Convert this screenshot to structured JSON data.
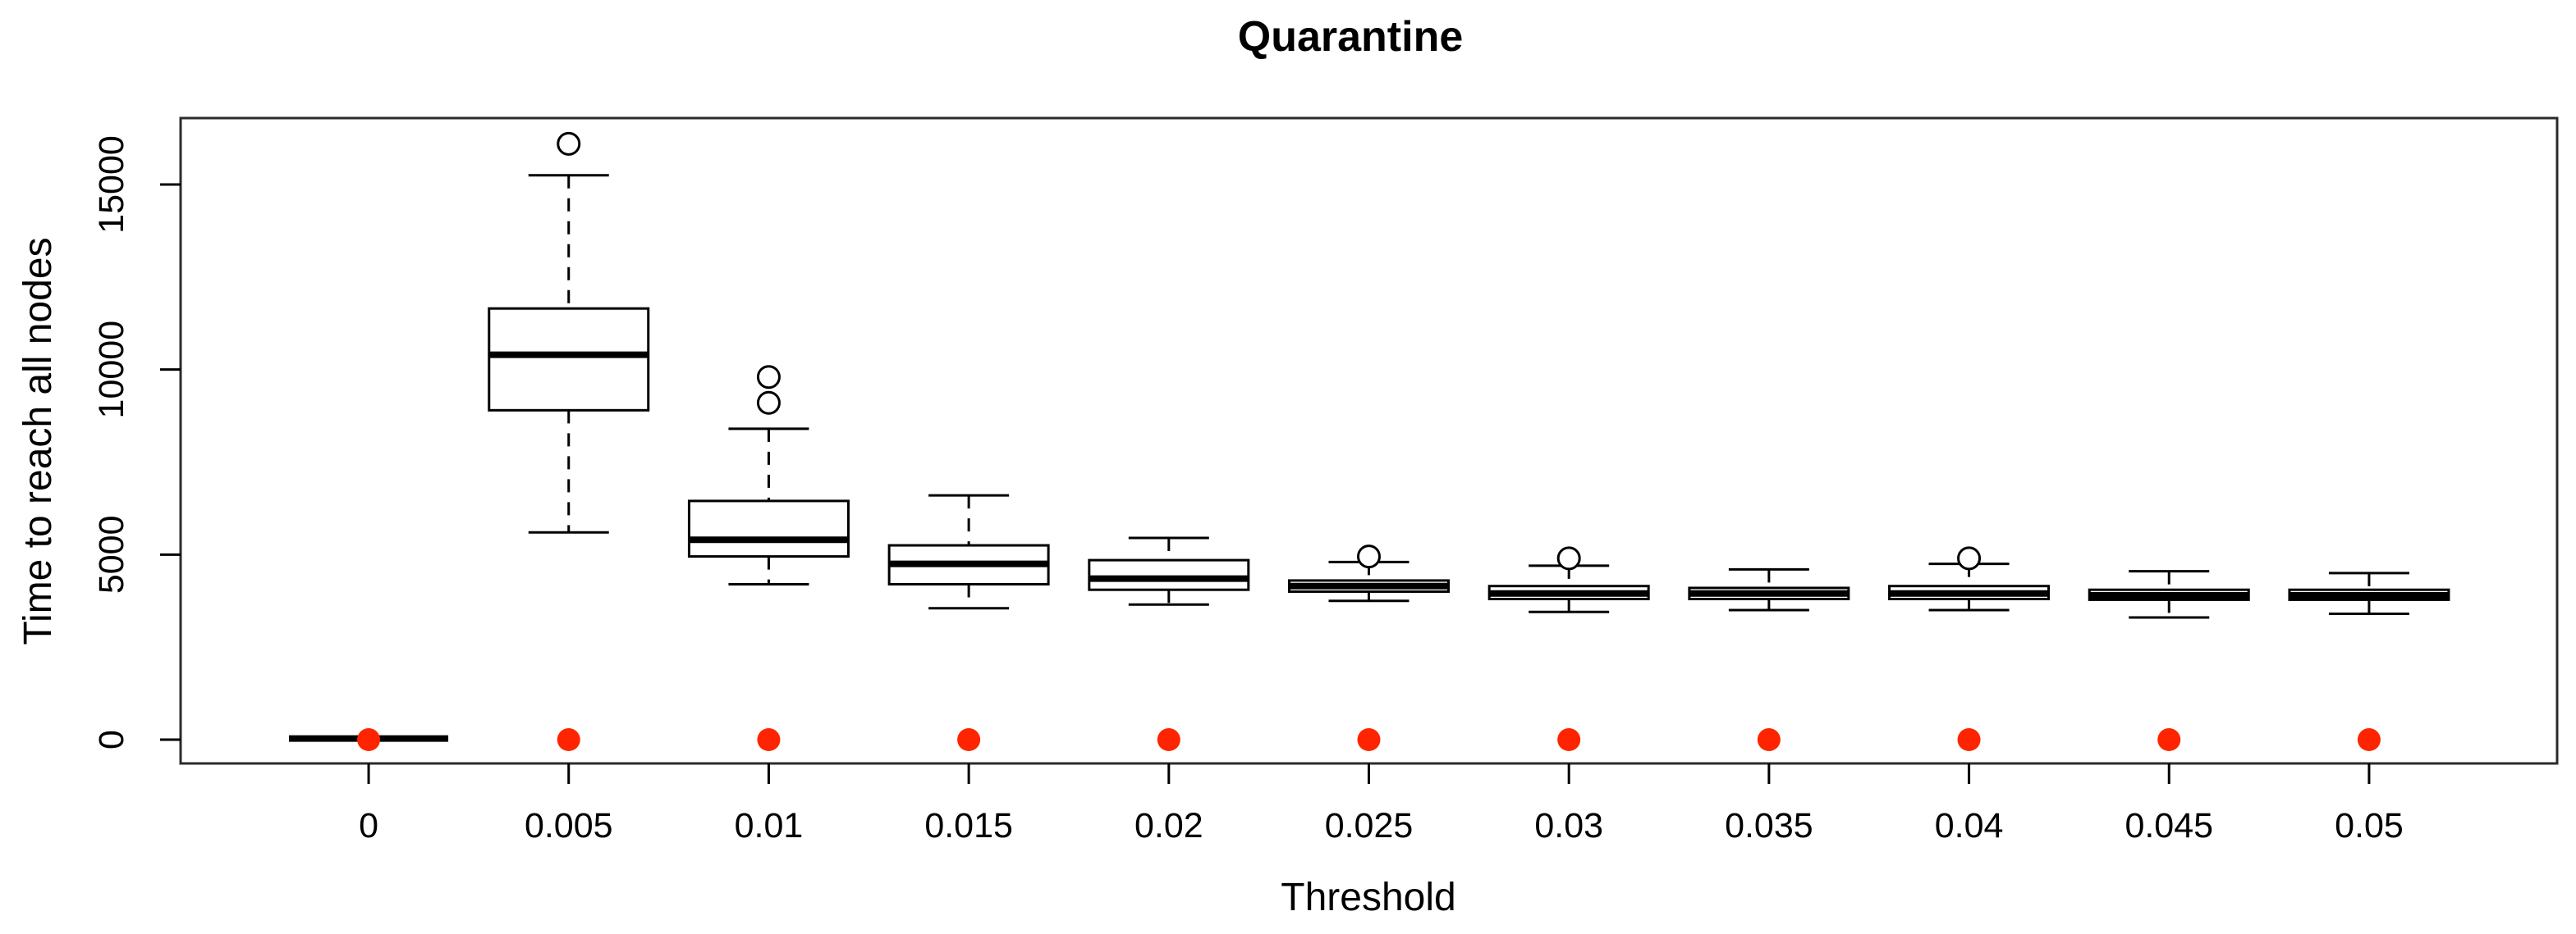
{
  "chart_data": {
    "type": "boxplot",
    "title": "Quarantine",
    "xlabel": "Threshold",
    "ylabel": "Time to reach all nodes",
    "ylim": [
      0,
      16500
    ],
    "yticks": [
      0,
      5000,
      10000,
      15000
    ],
    "ytick_labels": [
      "0",
      "5000",
      "10000",
      "15000"
    ],
    "categories": [
      "0",
      "0.005",
      "0.01",
      "0.015",
      "0.02",
      "0.025",
      "0.03",
      "0.035",
      "0.04",
      "0.045",
      "0.05"
    ],
    "grid": "off",
    "boxes": [
      {
        "category": "0",
        "low": 30,
        "q1": 30,
        "median": 30,
        "q3": 30,
        "high": 30,
        "outliers": []
      },
      {
        "category": "0.005",
        "low": 5600,
        "q1": 8900,
        "median": 10400,
        "q3": 11650,
        "high": 15250,
        "outliers": [
          16100
        ]
      },
      {
        "category": "0.01",
        "low": 4200,
        "q1": 4950,
        "median": 5400,
        "q3": 6450,
        "high": 8400,
        "outliers": [
          9100,
          9800
        ]
      },
      {
        "category": "0.015",
        "low": 3550,
        "q1": 4200,
        "median": 4750,
        "q3": 5250,
        "high": 6600,
        "outliers": []
      },
      {
        "category": "0.02",
        "low": 3650,
        "q1": 4050,
        "median": 4350,
        "q3": 4850,
        "high": 5450,
        "outliers": []
      },
      {
        "category": "0.025",
        "low": 3750,
        "q1": 4000,
        "median": 4150,
        "q3": 4300,
        "high": 4800,
        "outliers": [
          4950
        ]
      },
      {
        "category": "0.03",
        "low": 3450,
        "q1": 3800,
        "median": 3950,
        "q3": 4150,
        "high": 4700,
        "outliers": [
          4900
        ]
      },
      {
        "category": "0.035",
        "low": 3500,
        "q1": 3800,
        "median": 3950,
        "q3": 4100,
        "high": 4600,
        "outliers": []
      },
      {
        "category": "0.04",
        "low": 3500,
        "q1": 3800,
        "median": 3950,
        "q3": 4150,
        "high": 4750,
        "outliers": [
          4900
        ]
      },
      {
        "category": "0.045",
        "low": 3300,
        "q1": 3780,
        "median": 3900,
        "q3": 4050,
        "high": 4550,
        "outliers": []
      },
      {
        "category": "0.05",
        "low": 3400,
        "q1": 3780,
        "median": 3900,
        "q3": 4050,
        "high": 4500,
        "outliers": []
      }
    ],
    "red_points": {
      "description": "solid red dot at value 0 for every category",
      "value": 0,
      "color": "#ff2400"
    },
    "colors": {
      "box_fill": "#ffffff",
      "box_stroke": "#000000",
      "median": "#000000",
      "whisker": "#000000",
      "outlier_stroke": "#000000",
      "frame": "#2b2b2b",
      "red_point": "#ff2400"
    },
    "legend": "none"
  }
}
